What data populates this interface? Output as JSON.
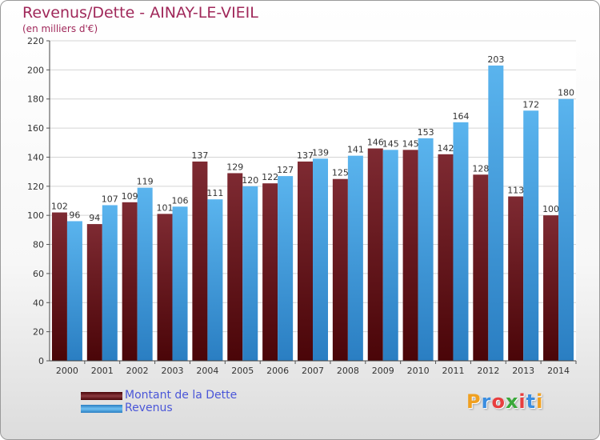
{
  "title": "Revenus/Dette - AINAY-LE-VIEIL",
  "subtitle": "(en milliers d'€)",
  "logo": "Proxiti",
  "colors": {
    "dette": "#7a1a26",
    "revenus": "#4aa6e6",
    "title": "#a0285a",
    "legend_text": "#4a56d8"
  },
  "chart_data": {
    "type": "bar",
    "categories": [
      "2000",
      "2001",
      "2002",
      "2003",
      "2004",
      "2005",
      "2006",
      "2007",
      "2008",
      "2009",
      "2010",
      "2011",
      "2012",
      "2013",
      "2014"
    ],
    "series": [
      {
        "name": "Montant de la Dette",
        "values": [
          102,
          94,
          109,
          101,
          137,
          129,
          122,
          137,
          125,
          146,
          145,
          142,
          128,
          113,
          100
        ]
      },
      {
        "name": "Revenus",
        "values": [
          96,
          107,
          119,
          106,
          111,
          120,
          127,
          139,
          141,
          145,
          153,
          164,
          203,
          172,
          180
        ]
      }
    ],
    "title": "Revenus/Dette - AINAY-LE-VIEIL",
    "ylabel": "(en milliers d'€)",
    "ylim": [
      0,
      220
    ],
    "yticks": [
      0,
      20,
      40,
      60,
      80,
      100,
      120,
      140,
      160,
      180,
      200,
      220
    ],
    "grid": true,
    "legend_position": "bottom-left"
  }
}
